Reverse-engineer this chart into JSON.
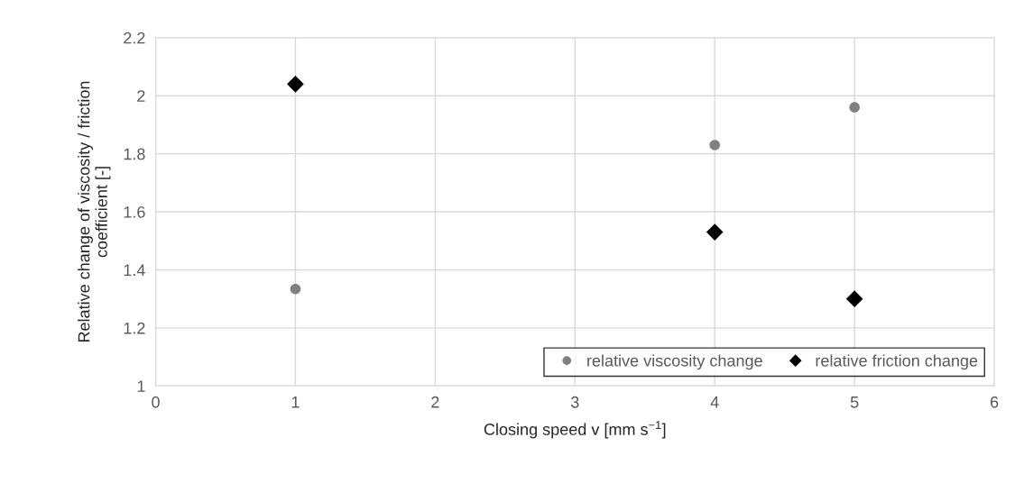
{
  "chart_data": {
    "type": "scatter",
    "xlabel": "Closing speed v [mm s$^{−1}$]",
    "ylabel": "Relative change of viscosity / friction\ncoefficient [-]",
    "series": [
      {
        "name": "relative viscosity change",
        "color": "#808080",
        "marker": "circle",
        "x": [
          1,
          4,
          5
        ],
        "values": [
          1.334,
          1.83,
          1.96
        ]
      },
      {
        "name": "relative friction change",
        "color": "#000000",
        "marker": "diamond",
        "x": [
          1,
          4,
          5
        ],
        "values": [
          2.04,
          1.53,
          1.3
        ]
      }
    ],
    "xlim": [
      0,
      6
    ],
    "xticks": [
      0,
      1,
      2,
      3,
      4,
      5,
      6
    ],
    "ylim": [
      1,
      2.2
    ],
    "yticks": [
      1,
      1.2,
      1.4,
      1.6,
      1.8,
      2,
      2.2
    ],
    "grid": true,
    "legend": "bottom right"
  }
}
